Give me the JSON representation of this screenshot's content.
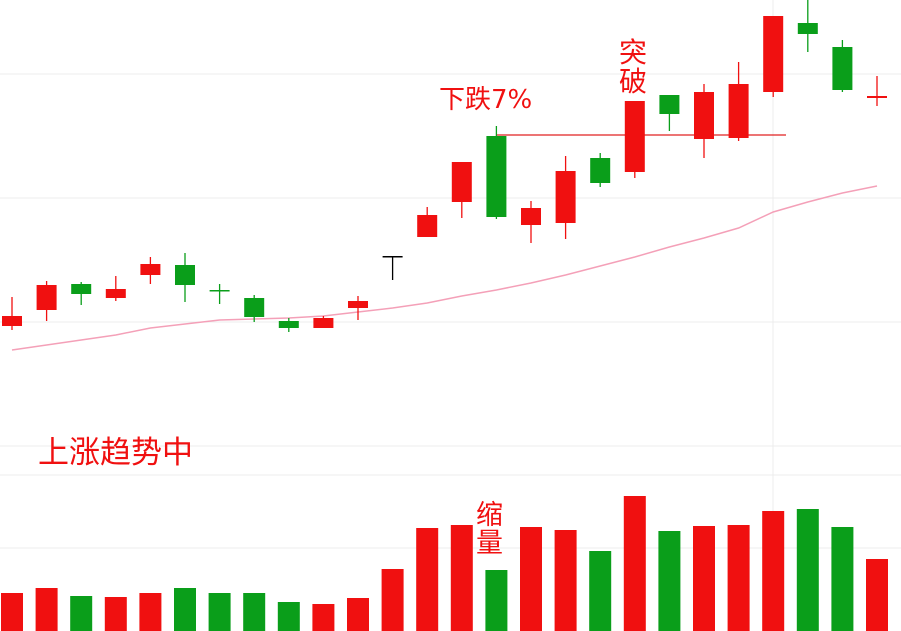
{
  "chart_data": {
    "type": "candlestick",
    "annotations": {
      "trend": "上涨趋势中",
      "drop": "下跌7%",
      "breakout": "突破",
      "shrink": "缩量"
    },
    "open": [
      120,
      136,
      162,
      148,
      171,
      181,
      156,
      148,
      125,
      118,
      138,
      190,
      209,
      244,
      310,
      221,
      223,
      288,
      274,
      351,
      307,
      308,
      354,
      423,
      399,
      348
    ],
    "high": [
      149,
      165,
      164,
      170,
      189,
      193,
      162,
      151,
      128,
      130,
      150,
      190,
      239,
      284,
      320,
      245,
      290,
      293,
      345,
      351,
      362,
      384,
      430,
      446,
      406,
      370
    ],
    "low": [
      116,
      125,
      141,
      145,
      162,
      144,
      142,
      124,
      114,
      118,
      126,
      166,
      209,
      228,
      227,
      203,
      207,
      259,
      268,
      315,
      288,
      305,
      349,
      394,
      354,
      340
    ],
    "close": [
      130,
      161,
      152,
      157,
      182,
      161,
      155,
      129,
      118,
      128,
      145,
      190,
      231,
      284,
      229,
      238,
      275,
      263,
      345,
      332,
      354,
      362,
      430,
      412,
      356,
      350
    ],
    "colors": [
      "#f01010",
      "#f01010",
      "#0a9e1a",
      "#f01010",
      "#f01010",
      "#0a9e1a",
      "#0a9e1a",
      "#0a9e1a",
      "#0a9e1a",
      "#f01010",
      "#f01010",
      "#000000",
      "#f01010",
      "#f01010",
      "#0a9e1a",
      "#f01010",
      "#f01010",
      "#0a9e1a",
      "#f01010",
      "#0a9e1a",
      "#f01010",
      "#f01010",
      "#f01010",
      "#0a9e1a",
      "#0a9e1a",
      "#f01010"
    ],
    "ma": [
      96,
      101,
      106,
      111,
      118,
      122,
      126,
      127,
      128,
      130,
      134,
      138,
      143,
      150,
      156,
      163,
      171,
      180,
      189,
      199,
      208,
      218,
      234,
      244,
      253,
      260
    ],
    "ma_color": "#f4a0b8",
    "level": 311,
    "level_color": "#e02020",
    "ylim": [
      0,
      446
    ],
    "yticks": [
      0,
      124,
      248,
      372
    ],
    "volume": [
      38,
      43,
      35,
      34,
      38,
      43,
      38,
      38,
      29,
      27,
      33,
      62,
      103,
      106,
      61,
      104,
      101,
      80,
      135,
      100,
      105,
      106,
      120,
      122,
      104,
      72
    ],
    "volume_colors": [
      "#f01010",
      "#f01010",
      "#0a9e1a",
      "#f01010",
      "#f01010",
      "#0a9e1a",
      "#0a9e1a",
      "#0a9e1a",
      "#0a9e1a",
      "#f01010",
      "#f01010",
      "#f01010",
      "#f01010",
      "#f01010",
      "#0a9e1a",
      "#f01010",
      "#f01010",
      "#0a9e1a",
      "#f01010",
      "#0a9e1a",
      "#f01010",
      "#f01010",
      "#f01010",
      "#0a9e1a",
      "#0a9e1a",
      "#f01010"
    ],
    "vlim": [
      0,
      156
    ],
    "vticks": [
      83,
      156
    ]
  }
}
